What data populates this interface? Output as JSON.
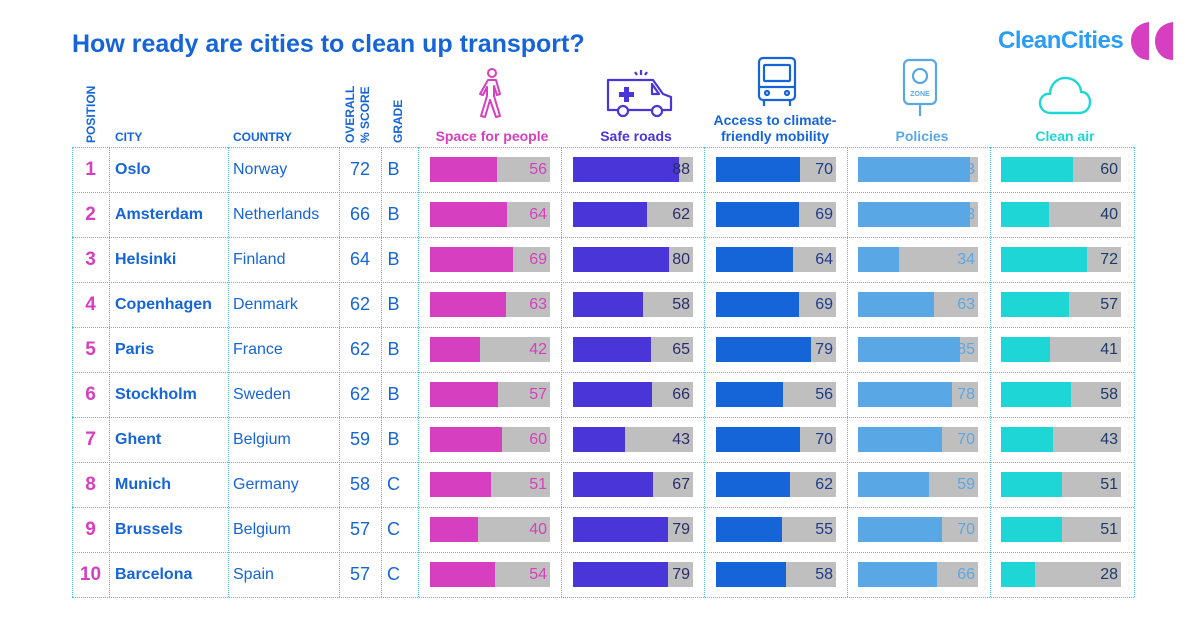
{
  "title": "How ready are cities to clean up transport?",
  "logo": {
    "text": "CleanCities",
    "color": "#2a9df4",
    "mark_color": "#d63fbf"
  },
  "headers": {
    "position": "POSITION",
    "city": "CITY",
    "country": "COUNTRY",
    "score_line1": "OVERALL",
    "score_line2": "% SCORE",
    "grade": "GRADE",
    "metrics": [
      {
        "key": "space",
        "label": "Space for people",
        "label2": "",
        "color": "#d63fbf",
        "icon": "pedestrian-icon",
        "value_color": "#d63fbf"
      },
      {
        "key": "safe",
        "label": "Safe roads",
        "label2": "",
        "color": "#4a35d9",
        "icon": "ambulance-icon",
        "value_color": "#2c2c6a"
      },
      {
        "key": "access",
        "label": "Access to climate-",
        "label2": "friendly mobility",
        "color": "#1565d8",
        "icon": "bus-icon",
        "value_color": "#1f3b8c"
      },
      {
        "key": "policies",
        "label": "Policies",
        "label2": "",
        "color": "#5aa7e6",
        "icon": "zone-sign-icon",
        "value_color": "#5aa7e6"
      },
      {
        "key": "air",
        "label": "Clean air",
        "label2": "",
        "color": "#1fd6d6",
        "icon": "cloud-icon",
        "value_color": "#1f3b6a"
      }
    ]
  },
  "chart_data": {
    "type": "table",
    "columns": [
      "Position",
      "City",
      "Country",
      "Overall % score",
      "Grade",
      "Space for people",
      "Safe roads",
      "Access to climate-friendly mobility",
      "Policies",
      "Clean air"
    ],
    "value_range": [
      0,
      100
    ],
    "rows": [
      {
        "position": "1",
        "city": "Oslo",
        "country": "Norway",
        "score": "72",
        "grade": "B",
        "space": 56,
        "safe": 88,
        "access": 70,
        "policies": 93,
        "air": 60
      },
      {
        "position": "2",
        "city": "Amsterdam",
        "country": "Netherlands",
        "score": "66",
        "grade": "B",
        "space": 64,
        "safe": 62,
        "access": 69,
        "policies": 93,
        "air": 40
      },
      {
        "position": "3",
        "city": "Helsinki",
        "country": "Finland",
        "score": "64",
        "grade": "B",
        "space": 69,
        "safe": 80,
        "access": 64,
        "policies": 34,
        "air": 72
      },
      {
        "position": "4",
        "city": "Copenhagen",
        "country": "Denmark",
        "score": "62",
        "grade": "B",
        "space": 63,
        "safe": 58,
        "access": 69,
        "policies": 63,
        "air": 57
      },
      {
        "position": "5",
        "city": "Paris",
        "country": "France",
        "score": "62",
        "grade": "B",
        "space": 42,
        "safe": 65,
        "access": 79,
        "policies": 85,
        "air": 41
      },
      {
        "position": "6",
        "city": "Stockholm",
        "country": "Sweden",
        "score": "62",
        "grade": "B",
        "space": 57,
        "safe": 66,
        "access": 56,
        "policies": 78,
        "air": 58
      },
      {
        "position": "7",
        "city": "Ghent",
        "country": "Belgium",
        "score": "59",
        "grade": "B",
        "space": 60,
        "safe": 43,
        "access": 70,
        "policies": 70,
        "air": 43
      },
      {
        "position": "8",
        "city": "Munich",
        "country": "Germany",
        "score": "58",
        "grade": "C",
        "space": 51,
        "safe": 67,
        "access": 62,
        "policies": 59,
        "air": 51
      },
      {
        "position": "9",
        "city": "Brussels",
        "country": "Belgium",
        "score": "57",
        "grade": "C",
        "space": 40,
        "safe": 79,
        "access": 55,
        "policies": 70,
        "air": 51
      },
      {
        "position": "10",
        "city": "Barcelona",
        "country": "Spain",
        "score": "57",
        "grade": "C",
        "space": 54,
        "safe": 79,
        "access": 58,
        "policies": 66,
        "air": 28
      }
    ]
  }
}
